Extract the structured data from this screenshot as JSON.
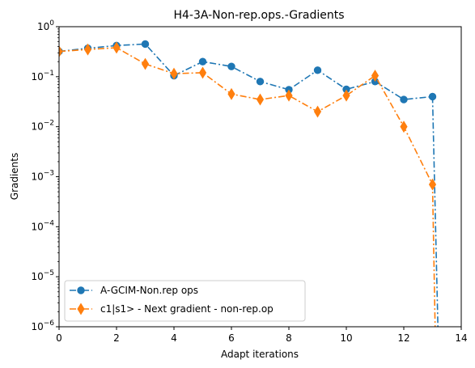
{
  "chart_data": {
    "type": "line",
    "title": "H4-3A-Non-rep.ops.-Gradients",
    "xlabel": "Adapt iterations",
    "ylabel": "Gradients",
    "xlim": [
      0,
      14
    ],
    "ylim": [
      1e-06,
      1
    ],
    "yscale": "log",
    "x_ticks": [
      0,
      2,
      4,
      6,
      8,
      10,
      12,
      14
    ],
    "x_tick_labels": [
      "0",
      "2",
      "4",
      "6",
      "8",
      "10",
      "12",
      "14"
    ],
    "y_ticks": [
      1e-06,
      1e-05,
      0.0001,
      0.001,
      0.01,
      0.1,
      1
    ],
    "y_tick_labels": [
      {
        "base": "10",
        "exp": "−6"
      },
      {
        "base": "10",
        "exp": "−5"
      },
      {
        "base": "10",
        "exp": "−4"
      },
      {
        "base": "10",
        "exp": "−3"
      },
      {
        "base": "10",
        "exp": "−2"
      },
      {
        "base": "10",
        "exp": "−1"
      },
      {
        "base": "10",
        "exp": "0"
      }
    ],
    "grid": false,
    "legend_position": "lower-left",
    "series": [
      {
        "name": "A-GCIM-Non.rep ops",
        "color": "#1f77b4",
        "marker": "circle",
        "linestyle": "dashdot",
        "x": [
          0,
          1,
          2,
          3,
          4,
          5,
          6,
          7,
          8,
          9,
          10,
          11,
          12,
          13,
          13.2
        ],
        "y": [
          0.32,
          0.37,
          0.42,
          0.45,
          0.105,
          0.2,
          0.16,
          0.08,
          0.055,
          0.135,
          0.056,
          0.08,
          0.035,
          0.04,
          5e-07
        ]
      },
      {
        "name": "c1|s1> - Next gradient - non-rep.op",
        "color": "#ff7f0e",
        "marker": "diamond",
        "linestyle": "dashdot",
        "x": [
          0,
          1,
          2,
          3,
          4,
          5,
          6,
          7,
          8,
          9,
          10,
          11,
          12,
          13,
          13.1
        ],
        "y": [
          0.32,
          0.35,
          0.38,
          0.18,
          0.115,
          0.12,
          0.045,
          0.035,
          0.042,
          0.02,
          0.042,
          0.105,
          0.01,
          0.0007,
          5e-07
        ]
      }
    ]
  }
}
